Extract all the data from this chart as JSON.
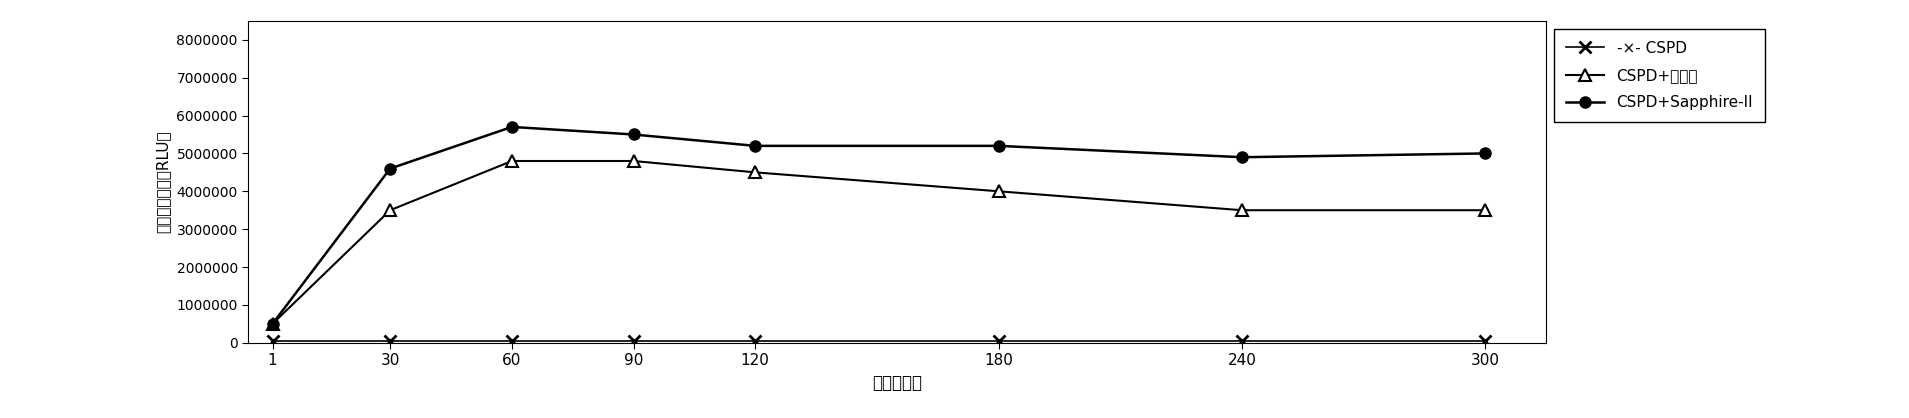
{
  "x": [
    1,
    30,
    60,
    90,
    120,
    180,
    240,
    300
  ],
  "cspd": [
    50000,
    50000,
    50000,
    50000,
    50000,
    50000,
    50000,
    50000
  ],
  "cspd_enhancer": [
    500000,
    3500000,
    4800000,
    4800000,
    4500000,
    4000000,
    3500000,
    3500000
  ],
  "cspd_sapphire": [
    500000,
    4600000,
    5700000,
    5500000,
    5200000,
    5200000,
    4900000,
    5000000
  ],
  "xlabel": "时间（分）",
  "ylabel": "相对发光强度（RLU）",
  "legend_cspd": "-×- CSPD",
  "legend_enhancer": "CSPD+增强剂",
  "legend_sapphire": "CSPD+Sapphire-II",
  "ylim": [
    0,
    8500000
  ],
  "yticks": [
    0,
    1000000,
    2000000,
    3000000,
    4000000,
    5000000,
    6000000,
    7000000,
    8000000
  ],
  "bg_color": "#ffffff",
  "line_color": "#000000",
  "figsize": [
    19.09,
    4.18
  ],
  "dpi": 100
}
